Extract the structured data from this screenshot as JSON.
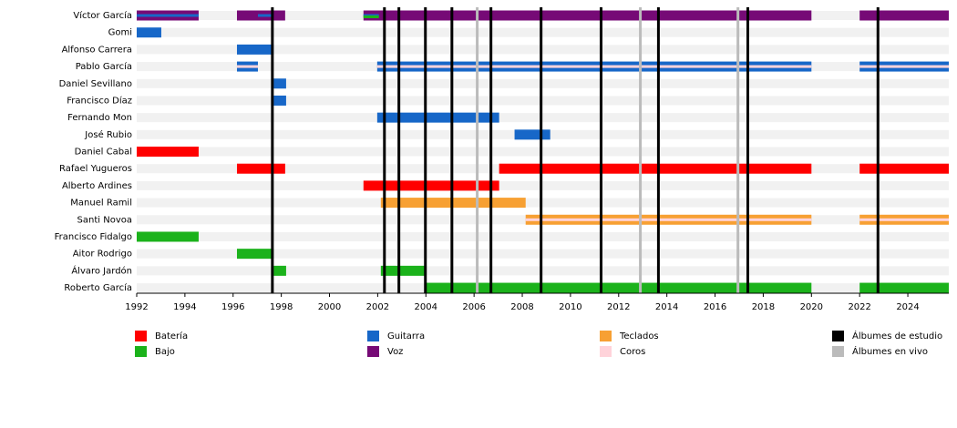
{
  "chart_data": {
    "type": "timeline",
    "roles": [
      {
        "name": "Batería",
        "color": "#ff0000"
      },
      {
        "name": "Bajo",
        "color": "#1bb21b"
      },
      {
        "name": "Guitarra",
        "color": "#1767c8"
      },
      {
        "name": "Voz",
        "color": "#760a76"
      },
      {
        "name": "Teclados",
        "color": "#f7a033"
      },
      {
        "name": "Coros",
        "color": "#ffd3da"
      }
    ],
    "studio_albums": {
      "name": "Álbumes de estudio",
      "color": "#000000",
      "values": [
        1997.63,
        2002.28,
        2002.88,
        2003.98,
        2005.08,
        2006.7,
        2008.78,
        2011.27,
        2013.65,
        2017.36,
        2022.76
      ]
    },
    "live_albums": {
      "name": "Álbumes en vivo",
      "color": "#bbbbbb",
      "values": [
        2006.13,
        2012.9,
        2016.95
      ]
    },
    "members": [
      {
        "name": "Víctor García",
        "periods": [
          {
            "role": 3,
            "start": 1992,
            "end": 1994.57
          },
          {
            "role": 3,
            "start": 1996.16,
            "end": 1998.16
          },
          {
            "role": 3,
            "start": 2001.41,
            "end": 2020
          },
          {
            "role": 3,
            "start": 2022,
            "end": 2025.7
          }
        ],
        "secondary": [
          {
            "role": 2,
            "start": 1992,
            "end": 1994.57
          },
          {
            "role": 2,
            "start": 1997.03,
            "end": 1997.6
          },
          {
            "role": 2,
            "start": 2001.41,
            "end": 2002.05
          },
          {
            "role": 1,
            "start": 2001.41,
            "end": 2002.05
          }
        ]
      },
      {
        "name": "Gomi",
        "periods": [
          {
            "role": 2,
            "start": 1992,
            "end": 1993.02
          }
        ],
        "secondary": []
      },
      {
        "name": "Alfonso Carrera",
        "periods": [
          {
            "role": 2,
            "start": 1996.16,
            "end": 1997.68
          }
        ],
        "secondary": []
      },
      {
        "name": "Pablo García",
        "periods": [
          {
            "role": 2,
            "start": 1996.16,
            "end": 1997.03
          },
          {
            "role": 2,
            "start": 2001.98,
            "end": 2020
          },
          {
            "role": 2,
            "start": 2022,
            "end": 2025.7
          }
        ],
        "secondary": [
          {
            "role": 5,
            "start": 1996.16,
            "end": 1997.03
          },
          {
            "role": 5,
            "start": 2001.98,
            "end": 2020
          },
          {
            "role": 5,
            "start": 2022,
            "end": 2025.7
          }
        ]
      },
      {
        "name": "Daniel Sevillano",
        "periods": [
          {
            "role": 2,
            "start": 1997.68,
            "end": 1998.2
          }
        ],
        "secondary": []
      },
      {
        "name": "Francisco Díaz",
        "periods": [
          {
            "role": 2,
            "start": 1997.68,
            "end": 1998.2
          }
        ],
        "secondary": []
      },
      {
        "name": "Fernando Mon",
        "periods": [
          {
            "role": 2,
            "start": 2001.98,
            "end": 2007.04
          }
        ],
        "secondary": []
      },
      {
        "name": "José Rubio",
        "periods": [
          {
            "role": 2,
            "start": 2007.68,
            "end": 2009.16
          }
        ],
        "secondary": []
      },
      {
        "name": "Daniel Cabal",
        "periods": [
          {
            "role": 0,
            "start": 1992,
            "end": 1994.57
          }
        ],
        "secondary": []
      },
      {
        "name": "Rafael Yugueros",
        "periods": [
          {
            "role": 0,
            "start": 1996.16,
            "end": 1998.16
          },
          {
            "role": 0,
            "start": 2007.04,
            "end": 2020
          },
          {
            "role": 0,
            "start": 2022,
            "end": 2025.7
          }
        ],
        "secondary": []
      },
      {
        "name": "Alberto Ardines",
        "periods": [
          {
            "role": 0,
            "start": 2001.41,
            "end": 2007.04
          }
        ],
        "secondary": []
      },
      {
        "name": "Manuel Ramil",
        "periods": [
          {
            "role": 4,
            "start": 2002.13,
            "end": 2008.14
          }
        ],
        "secondary": []
      },
      {
        "name": "Santi Novoa",
        "periods": [
          {
            "role": 4,
            "start": 2008.14,
            "end": 2020
          },
          {
            "role": 4,
            "start": 2022,
            "end": 2025.7
          }
        ],
        "secondary": [
          {
            "role": 5,
            "start": 2008.14,
            "end": 2020
          },
          {
            "role": 5,
            "start": 2022,
            "end": 2025.7
          }
        ]
      },
      {
        "name": "Francisco Fidalgo",
        "periods": [
          {
            "role": 1,
            "start": 1992,
            "end": 1994.57
          }
        ],
        "secondary": []
      },
      {
        "name": "Aitor Rodrigo",
        "periods": [
          {
            "role": 1,
            "start": 1996.16,
            "end": 1997.68
          }
        ],
        "secondary": []
      },
      {
        "name": "Álvaro Jardón",
        "periods": [
          {
            "role": 1,
            "start": 1997.68,
            "end": 1998.2
          },
          {
            "role": 1,
            "start": 2002.13,
            "end": 2003.98
          }
        ],
        "secondary": []
      },
      {
        "name": "Roberto García",
        "periods": [
          {
            "role": 1,
            "start": 2003.98,
            "end": 2020
          },
          {
            "role": 1,
            "start": 2022,
            "end": 2025.7
          }
        ],
        "secondary": []
      }
    ],
    "xlim": [
      1992,
      2025.7
    ],
    "xticks": [
      1992,
      1994,
      1996,
      1998,
      2000,
      2002,
      2004,
      2006,
      2008,
      2010,
      2012,
      2014,
      2016,
      2018,
      2020,
      2022,
      2024
    ]
  }
}
